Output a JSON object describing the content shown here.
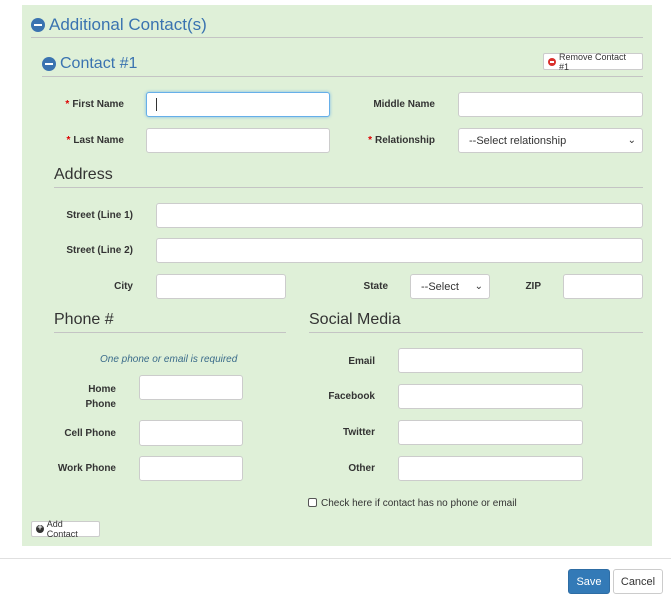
{
  "section": {
    "title": "Additional Contact(s)"
  },
  "contact": {
    "title": "Contact #1",
    "remove_label": "Remove Contact #1"
  },
  "fields": {
    "first_name": "First Name",
    "middle_name": "Middle Name",
    "last_name": "Last Name",
    "relationship": "Relationship",
    "relationship_value": "--Select relationship",
    "required_mark": "*"
  },
  "address": {
    "title": "Address",
    "street1": "Street (Line 1)",
    "street2": "Street (Line 2)",
    "city": "City",
    "state": "State",
    "state_value": "--Select",
    "zip": "ZIP"
  },
  "phone": {
    "title": "Phone #",
    "note": "One phone or email is required",
    "home_line1": "Home",
    "home_line2": "Phone",
    "cell": "Cell Phone",
    "work": "Work Phone"
  },
  "social": {
    "title": "Social Media",
    "email": "Email",
    "facebook": "Facebook",
    "twitter": "Twitter",
    "other": "Other"
  },
  "no_contact_checkbox": "Check here if contact has no phone or email",
  "add_contact": "Add Contact",
  "footer": {
    "save": "Save",
    "cancel": "Cancel",
    "save_color": "#337ab7"
  }
}
